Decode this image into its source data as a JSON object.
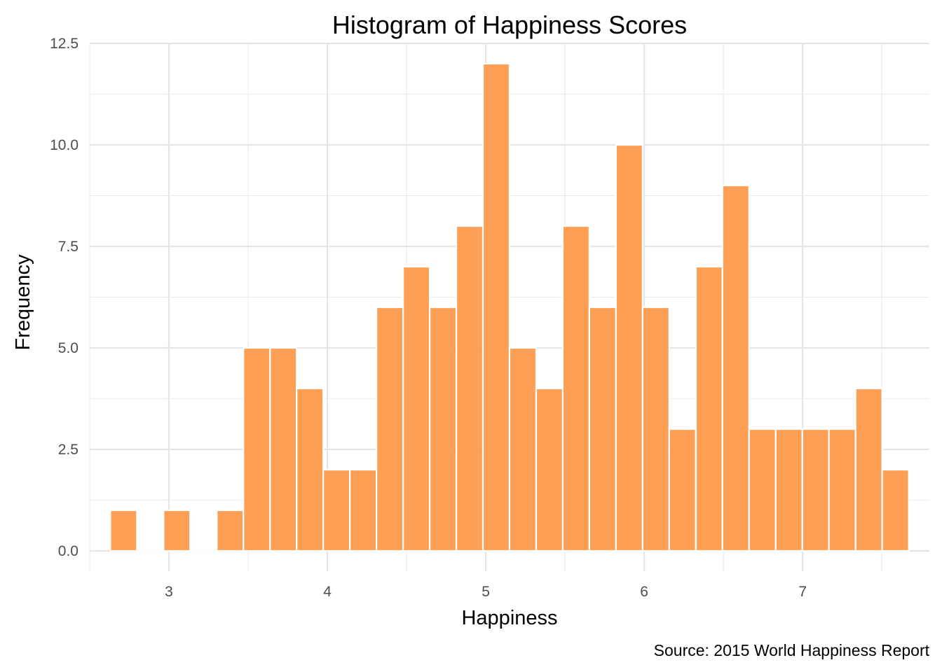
{
  "chart_data": {
    "type": "bar",
    "title": "Histogram of Happiness Scores",
    "xlabel": "Happiness",
    "ylabel": "Frequency",
    "caption": "Source: 2015 World Happiness Report",
    "xlim": [
      2.5,
      7.8
    ],
    "ylim": [
      -0.5,
      12.5
    ],
    "x_ticks": [
      3,
      4,
      5,
      6,
      7
    ],
    "x_tick_labels": [
      "3",
      "4",
      "5",
      "6",
      "7"
    ],
    "y_ticks": [
      0,
      2.5,
      5,
      7.5,
      10,
      12.5
    ],
    "y_tick_labels": [
      "0.0",
      "2.5",
      "5.0",
      "7.5",
      "10.0",
      "12.5"
    ],
    "bin_start": 2.63,
    "bin_width": 0.168,
    "values": [
      1,
      0,
      1,
      0,
      1,
      5,
      5,
      4,
      2,
      2,
      6,
      7,
      6,
      8,
      12,
      5,
      4,
      8,
      6,
      10,
      6,
      3,
      7,
      9,
      3,
      3,
      3,
      3,
      4,
      2
    ],
    "grid": true,
    "bar_color": "#fd9a4b",
    "bar_outline": "#ffffff"
  }
}
